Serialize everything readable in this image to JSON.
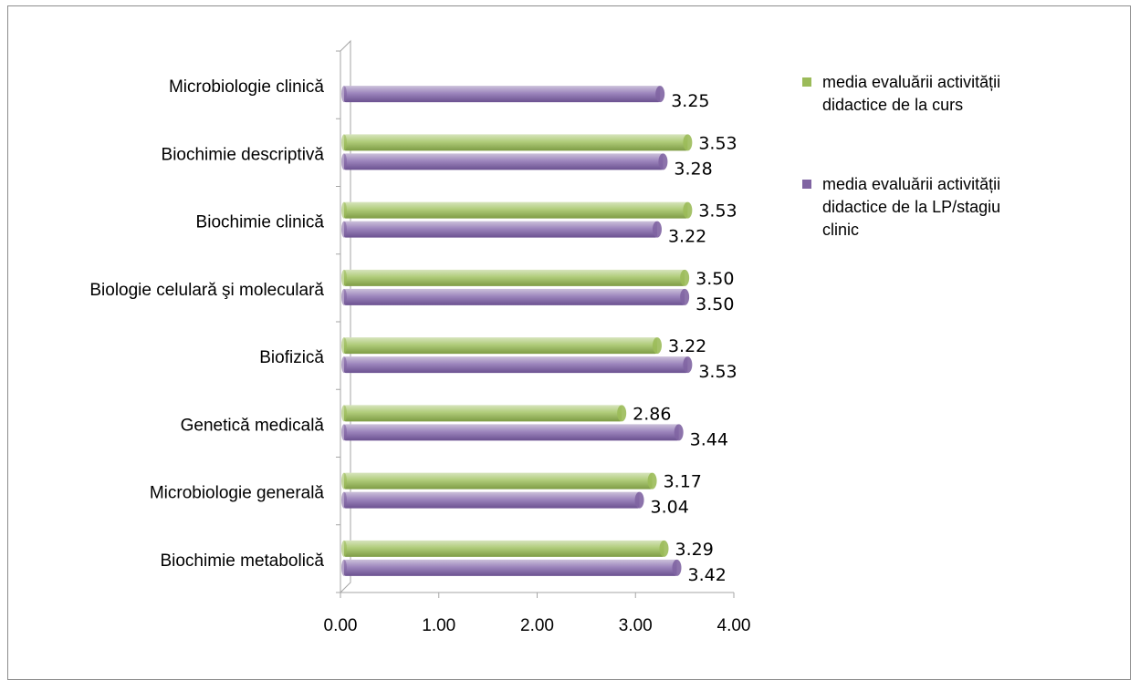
{
  "chart_data": {
    "type": "bar",
    "orientation": "horizontal",
    "categories": [
      "Biochimie metabolică",
      "Microbiologie generală",
      "Genetică medicală",
      "Biofizică",
      "Biologie celulară şi moleculară",
      "Biochimie clinică",
      "Biochimie descriptivă",
      "Microbiologie clinică"
    ],
    "series": [
      {
        "name": "media evaluării activității didactice de la curs",
        "legend_lines": [
          "media evaluării activității",
          "didactice de la curs"
        ],
        "color": "#9bbb59",
        "values": [
          3.29,
          3.17,
          2.86,
          3.22,
          3.5,
          3.53,
          3.53,
          null
        ]
      },
      {
        "name": "media evaluării activității didactice de la LP/stagiu clinic",
        "legend_lines": [
          "media evaluării activității",
          "didactice de la LP/stagiu",
          "clinic"
        ],
        "color": "#8064a2",
        "values": [
          3.42,
          3.04,
          3.44,
          3.53,
          3.5,
          3.22,
          3.28,
          3.25
        ]
      }
    ],
    "xlim": [
      0,
      4
    ],
    "xticks": [
      "0.00",
      "1.00",
      "2.00",
      "3.00",
      "4.00"
    ],
    "legend_position": "right",
    "grid": false
  }
}
